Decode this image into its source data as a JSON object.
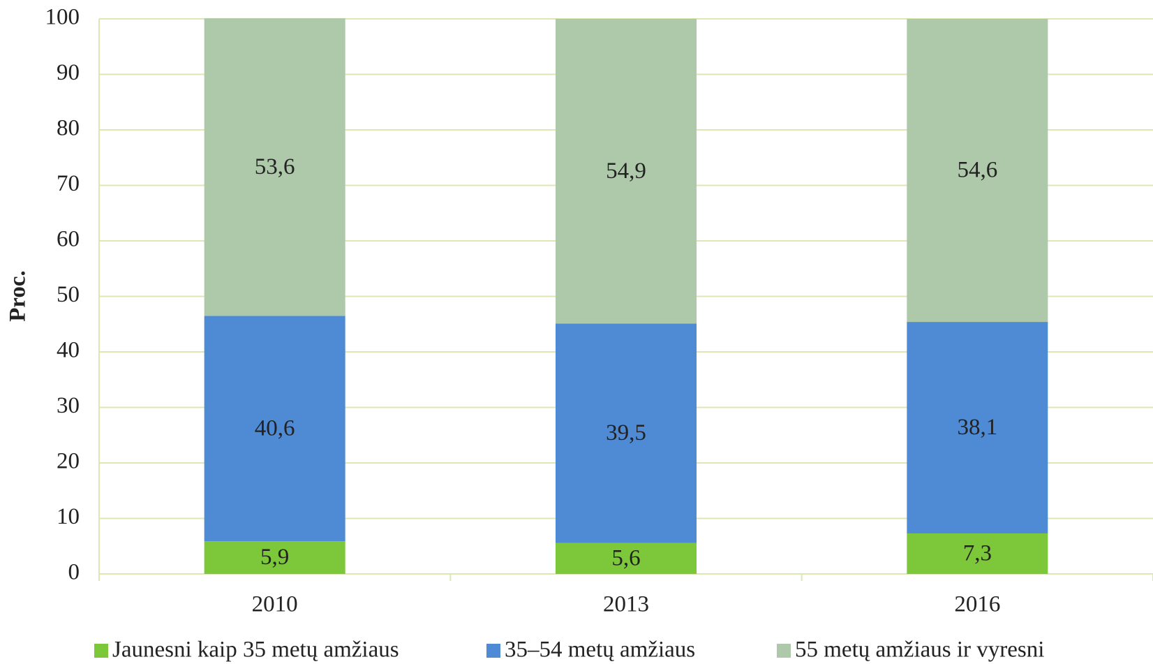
{
  "chart_data": {
    "type": "stacked_bar",
    "y_label": "Proc.",
    "categories": [
      "2010",
      "2013",
      "2016"
    ],
    "series": [
      {
        "name": "Jaunesni kaip 35 metų amžiaus",
        "color": "#7dc73a",
        "values": [
          5.9,
          5.6,
          7.3
        ],
        "value_labels": [
          "5,9",
          "5,6",
          "7,3"
        ]
      },
      {
        "name": "35–54 metų amžiaus",
        "color": "#4f8bd4",
        "values": [
          40.6,
          39.5,
          38.1
        ],
        "value_labels": [
          "40,6",
          "39,5",
          "38,1"
        ]
      },
      {
        "name": "55 metų amžiaus ir vyresni",
        "color": "#adc9a9",
        "values": [
          53.6,
          54.9,
          54.6
        ],
        "value_labels": [
          "53,6",
          "54,9",
          "54,6"
        ]
      }
    ],
    "ylim": [
      0,
      100
    ],
    "yticks": [
      0,
      10,
      20,
      30,
      40,
      50,
      60,
      70,
      80,
      90,
      100
    ],
    "grid": true
  }
}
